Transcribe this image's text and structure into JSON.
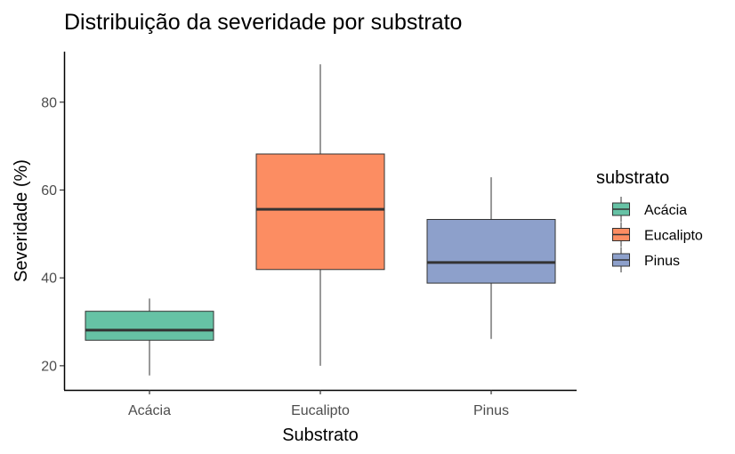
{
  "chart_data": {
    "type": "box",
    "title": "Distribuição da severidade por substrato",
    "xlabel": "Substrato",
    "ylabel": "Severidade (%)",
    "ylim": [
      14.5,
      91.5
    ],
    "yticks": [
      20,
      40,
      60,
      80
    ],
    "categories": [
      "Acácia",
      "Eucalipto",
      "Pinus"
    ],
    "boxes": [
      {
        "category": "Acácia",
        "min": 17.8,
        "q1": 25.8,
        "median": 28.1,
        "q3": 32.4,
        "max": 35.3,
        "color": "#66c2a5"
      },
      {
        "category": "Eucalipto",
        "min": 20.0,
        "q1": 41.9,
        "median": 55.6,
        "q3": 68.2,
        "max": 88.6,
        "color": "#fc8d62"
      },
      {
        "category": "Pinus",
        "min": 26.1,
        "q1": 38.8,
        "median": 43.5,
        "q3": 53.3,
        "max": 62.9,
        "color": "#8da0cb"
      }
    ],
    "legend": {
      "title": "substrato",
      "position": "right",
      "items": [
        "Acácia",
        "Eucalipto",
        "Pinus"
      ]
    },
    "grid": false
  }
}
